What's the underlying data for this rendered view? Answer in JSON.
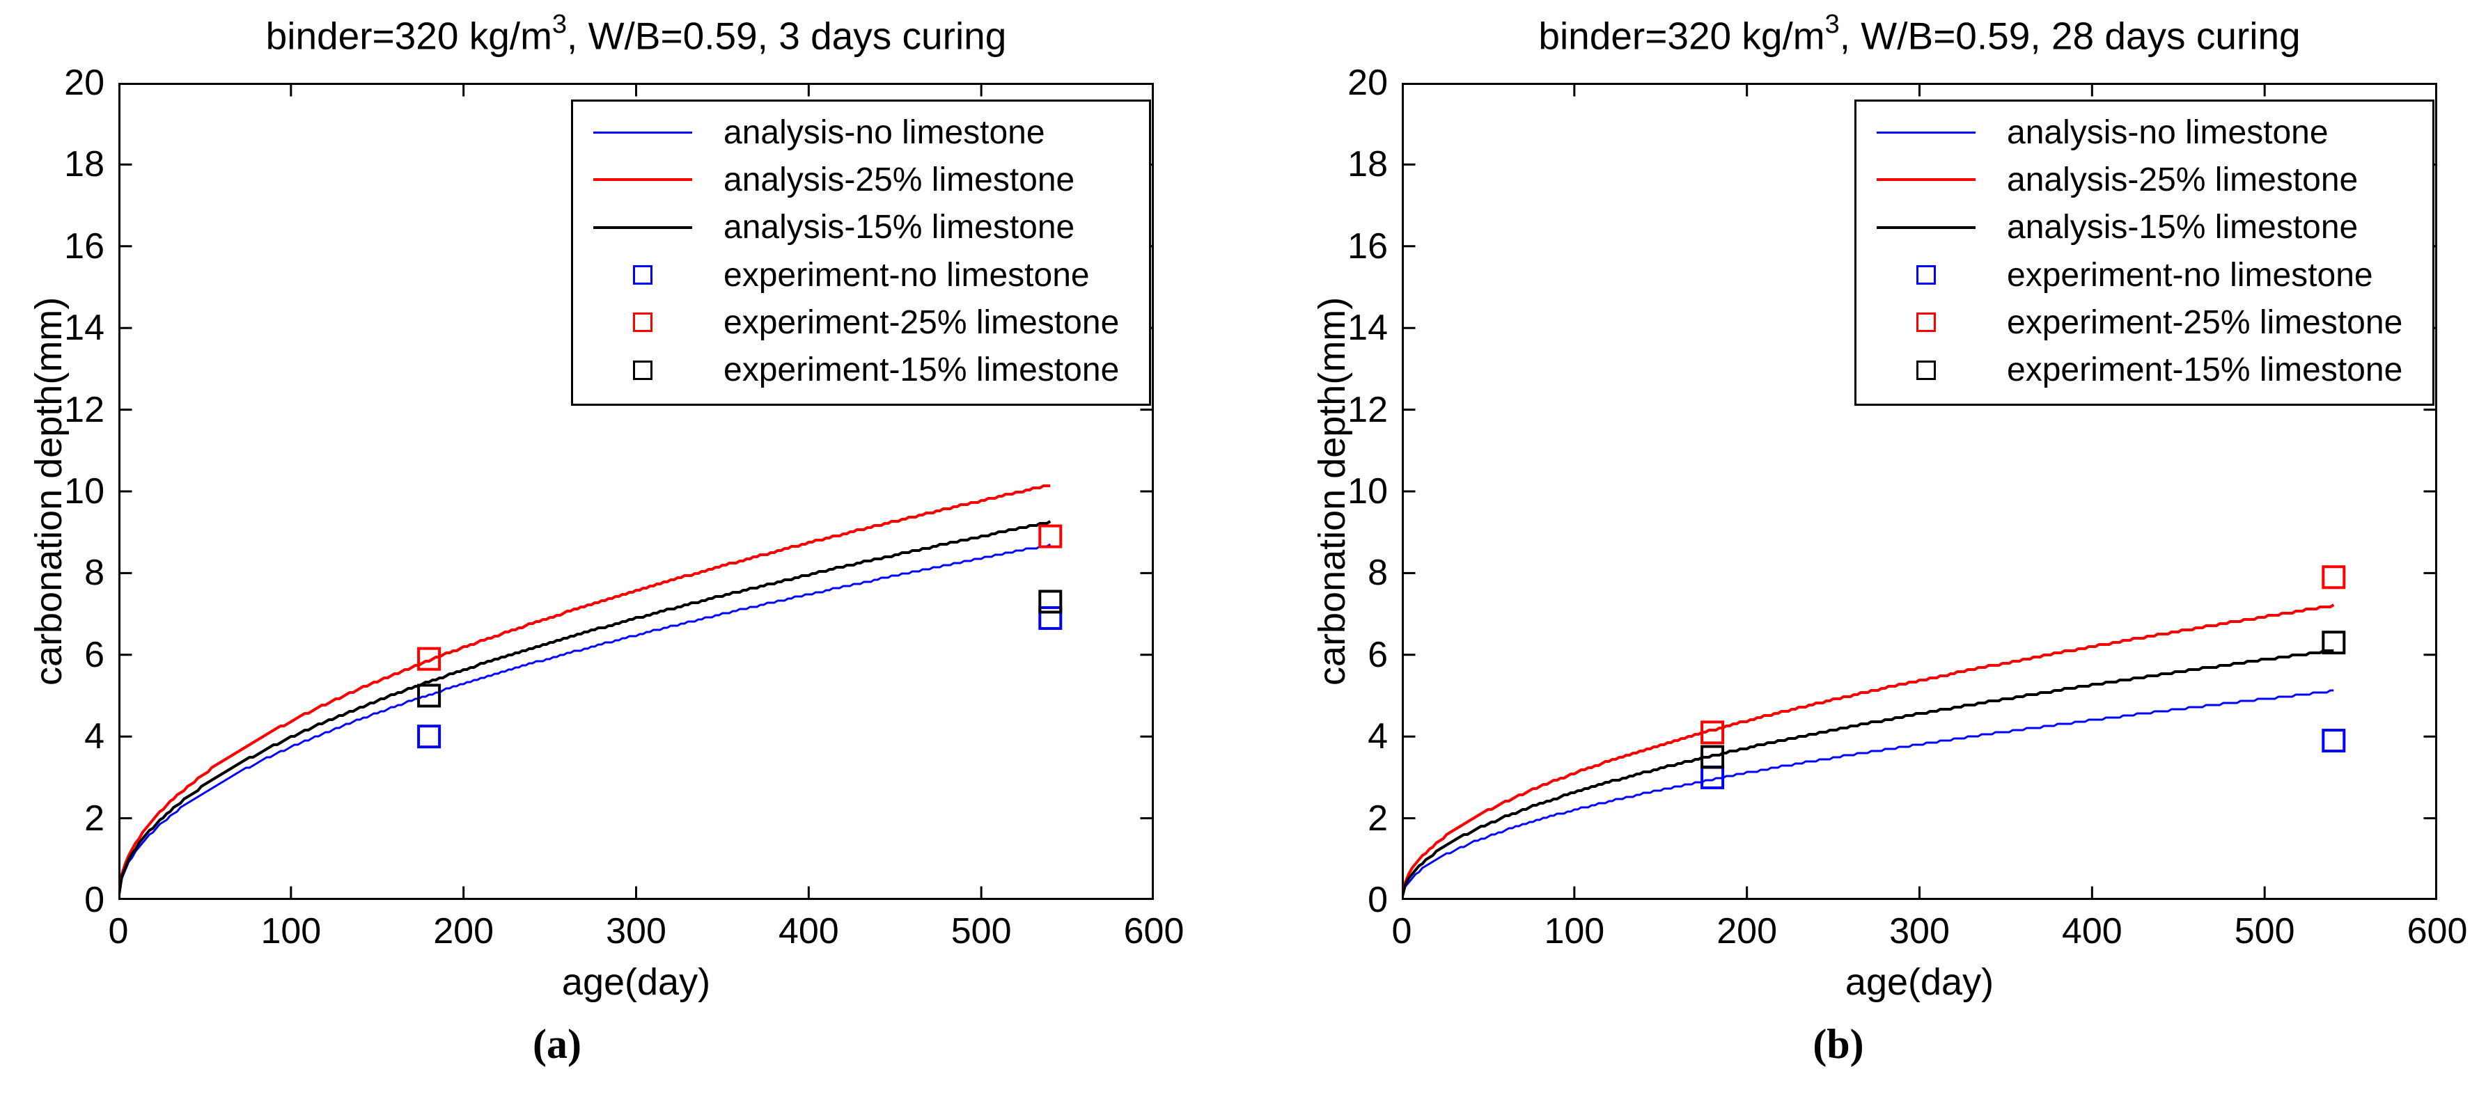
{
  "figure": {
    "background": "#ffffff",
    "colors": {
      "blue": "#0000FF",
      "red": "#FF0000",
      "black": "#000000"
    }
  },
  "chart_data": [
    {
      "type": "line",
      "title_prefix": "binder=320 kg/m",
      "title_sup": "3",
      "title_suffix": ", W/B=0.59, 3 days curing",
      "caption": "(a)",
      "xlabel": "age(day)",
      "ylabel": "carbonation depth(mm)",
      "axes": {
        "xlim": [
          0,
          600
        ],
        "ylim": [
          0,
          20
        ],
        "xticks": [
          0,
          100,
          200,
          300,
          400,
          500,
          600
        ],
        "yticks": [
          0,
          2,
          4,
          6,
          8,
          10,
          12,
          14,
          16,
          18,
          20
        ],
        "grid": false,
        "legend_position": "upper right inside"
      },
      "series": [
        {
          "name": "analysis-no limestone",
          "kind": "line",
          "color": "blue",
          "model": "depth = k*sqrt(age)",
          "k": 0.374,
          "age_range": [
            0,
            540
          ],
          "depth_at_180": 5.0,
          "depth_at_540": 8.7
        },
        {
          "name": "analysis-25% limestone",
          "kind": "line",
          "color": "red",
          "model": "depth = k*sqrt(age)",
          "k": 0.437,
          "age_range": [
            0,
            540
          ],
          "depth_at_180": 5.9,
          "depth_at_540": 10.2
        },
        {
          "name": "analysis-15% limestone",
          "kind": "line",
          "color": "black",
          "model": "depth = k*sqrt(age)",
          "k": 0.398,
          "age_range": [
            0,
            540
          ],
          "depth_at_180": 5.3,
          "depth_at_540": 9.2
        },
        {
          "name": "experiment-no limestone",
          "kind": "scatter",
          "color": "blue",
          "points": [
            [
              180,
              4.0
            ],
            [
              540,
              6.9
            ]
          ]
        },
        {
          "name": "experiment-25% limestone",
          "kind": "scatter",
          "color": "red",
          "points": [
            [
              180,
              5.9
            ],
            [
              540,
              8.9
            ]
          ]
        },
        {
          "name": "experiment-15% limestone",
          "kind": "scatter",
          "color": "black",
          "points": [
            [
              180,
              5.0
            ],
            [
              540,
              7.3
            ]
          ]
        }
      ]
    },
    {
      "type": "line",
      "title_prefix": "binder=320 kg/m",
      "title_sup": "3",
      "title_suffix": ", W/B=0.59, 28 days curing",
      "caption": "(b)",
      "xlabel": "age(day)",
      "ylabel": "carbonation depth(mm)",
      "axes": {
        "xlim": [
          0,
          600
        ],
        "ylim": [
          0,
          20
        ],
        "xticks": [
          0,
          100,
          200,
          300,
          400,
          500,
          600
        ],
        "yticks": [
          0,
          2,
          4,
          6,
          8,
          10,
          12,
          14,
          16,
          18,
          20
        ],
        "grid": false,
        "legend_position": "upper right inside"
      },
      "series": [
        {
          "name": "analysis-no limestone",
          "kind": "line",
          "color": "blue",
          "model": "depth = k*sqrt(age)",
          "k": 0.22,
          "age_range": [
            0,
            540
          ],
          "depth_at_180": 3.0,
          "depth_at_540": 5.1
        },
        {
          "name": "analysis-25% limestone",
          "kind": "line",
          "color": "red",
          "model": "depth = k*sqrt(age)",
          "k": 0.31,
          "age_range": [
            0,
            540
          ],
          "depth_at_180": 4.2,
          "depth_at_540": 7.2
        },
        {
          "name": "analysis-15% limestone",
          "kind": "line",
          "color": "black",
          "model": "depth = k*sqrt(age)",
          "k": 0.263,
          "age_range": [
            0,
            540
          ],
          "depth_at_180": 3.5,
          "depth_at_540": 6.1
        },
        {
          "name": "experiment-no limestone",
          "kind": "scatter",
          "color": "blue",
          "points": [
            [
              180,
              3.0
            ],
            [
              540,
              3.9
            ]
          ]
        },
        {
          "name": "experiment-25% limestone",
          "kind": "scatter",
          "color": "red",
          "points": [
            [
              180,
              4.1
            ],
            [
              540,
              7.9
            ]
          ]
        },
        {
          "name": "experiment-15% limestone",
          "kind": "scatter",
          "color": "black",
          "points": [
            [
              180,
              3.5
            ],
            [
              540,
              6.3
            ]
          ]
        }
      ]
    }
  ]
}
